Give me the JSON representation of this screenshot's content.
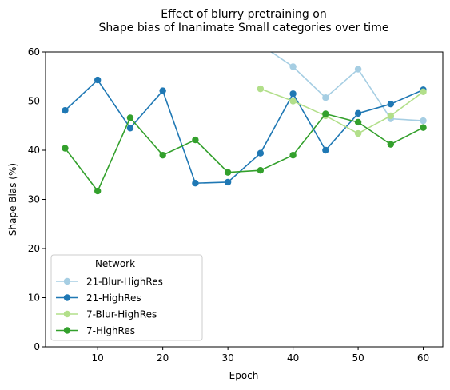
{
  "chart_data": {
    "type": "line",
    "title_line1": "Effect of blurry pretraining on",
    "title_line2": "Shape bias of Inanimate Small categories over time",
    "xlabel": "Epoch",
    "ylabel": "Shape Bias (%)",
    "xlim": [
      2,
      63
    ],
    "ylim": [
      0,
      60
    ],
    "xticks": [
      10,
      20,
      30,
      40,
      50,
      60
    ],
    "yticks": [
      0,
      10,
      20,
      30,
      40,
      50,
      60
    ],
    "grid": false,
    "legend": {
      "title": "Network",
      "placement": "lower-left"
    },
    "series": [
      {
        "name": "21-Blur-HighRes",
        "color": "#a6cee3",
        "x": [
          35,
          40,
          45,
          50,
          55,
          60
        ],
        "y": [
          61.5,
          57.0,
          50.7,
          56.5,
          46.4,
          46.0
        ]
      },
      {
        "name": "21-HighRes",
        "color": "#1f78b4",
        "x": [
          5,
          10,
          15,
          20,
          25,
          30,
          35,
          40,
          45,
          50,
          55,
          60
        ],
        "y": [
          48.1,
          54.3,
          44.5,
          52.1,
          33.3,
          33.5,
          39.4,
          51.5,
          40.0,
          47.5,
          49.4,
          52.3
        ]
      },
      {
        "name": "7-Blur-HighRes",
        "color": "#b2df8a",
        "x": [
          35,
          40,
          45,
          50,
          55,
          60
        ],
        "y": [
          52.5,
          50.0,
          47.0,
          43.4,
          47.0,
          51.9
        ]
      },
      {
        "name": "7-HighRes",
        "color": "#33a02c",
        "x": [
          5,
          10,
          15,
          20,
          25,
          30,
          35,
          40,
          45,
          50,
          55,
          60
        ],
        "y": [
          40.4,
          31.7,
          46.6,
          39.0,
          42.1,
          35.5,
          35.9,
          39.0,
          47.4,
          45.7,
          41.2,
          44.6
        ]
      }
    ]
  }
}
